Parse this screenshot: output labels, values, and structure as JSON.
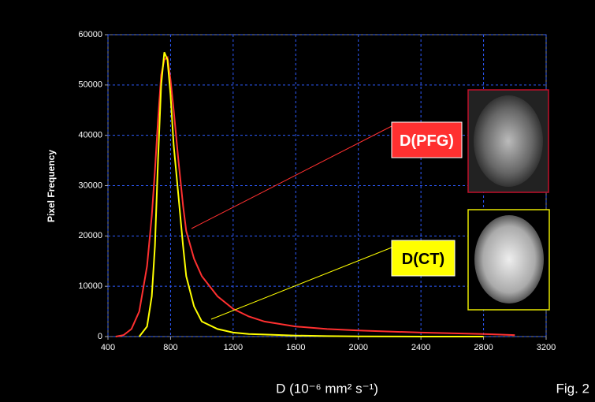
{
  "chart_data": {
    "type": "line",
    "x_label": "D (10⁻⁶ mm² s⁻¹)",
    "y_label": "Pixel Frequency",
    "figure_label": "Fig. 2",
    "x": [
      450,
      500,
      550,
      600,
      650,
      680,
      700,
      720,
      740,
      760,
      780,
      800,
      820,
      850,
      880,
      900,
      950,
      1000,
      1100,
      1200,
      1300,
      1400,
      1600,
      1800,
      2000,
      2400,
      2800,
      3000
    ],
    "series": [
      {
        "name": "D(PFG)",
        "color": "#ff3030",
        "values": [
          0,
          300,
          1500,
          5000,
          14000,
          24000,
          33000,
          43000,
          52000,
          55000,
          55500,
          51000,
          45000,
          35000,
          26000,
          21000,
          15500,
          12000,
          8000,
          5500,
          4000,
          3000,
          2000,
          1500,
          1200,
          800,
          500,
          300
        ]
      },
      {
        "name": "D(CT)",
        "color": "#ffff00",
        "values": [
          null,
          null,
          null,
          0,
          2000,
          8000,
          18000,
          35000,
          50000,
          56500,
          55000,
          48000,
          38000,
          28000,
          18000,
          12000,
          6000,
          3000,
          1500,
          800,
          500,
          400,
          200,
          100,
          50,
          0,
          0,
          null
        ]
      }
    ],
    "xlim": [
      400,
      3200
    ],
    "xticks": [
      400,
      800,
      1200,
      1600,
      2000,
      2400,
      2800,
      3200
    ],
    "ylim": [
      0,
      60000
    ],
    "yticks": [
      0,
      10000,
      20000,
      30000,
      40000,
      50000,
      60000
    ],
    "grid": true
  }
}
